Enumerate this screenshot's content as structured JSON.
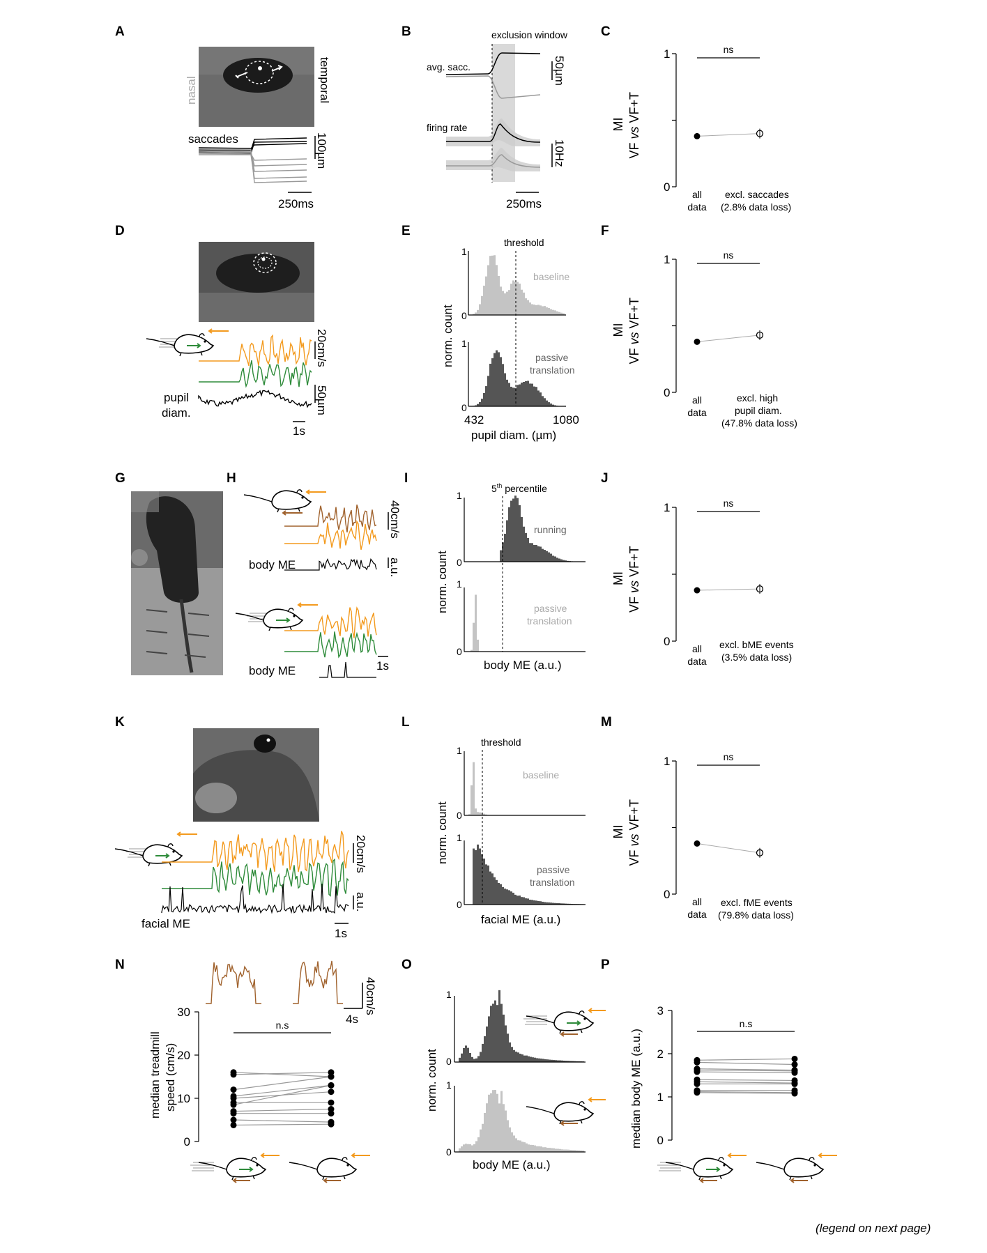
{
  "panels": [
    "A",
    "B",
    "C",
    "D",
    "E",
    "F",
    "G",
    "H",
    "I",
    "J",
    "K",
    "L",
    "M",
    "N",
    "O",
    "P"
  ],
  "panel_a": {
    "nasal": "nasal",
    "temporal": "temporal",
    "saccades": "saccades",
    "scale_y": "100µm",
    "scale_x": "250ms"
  },
  "panel_b": {
    "exclusion": "exclusion window",
    "avg_sacc": "avg. sacc.",
    "firing_rate": "firing rate",
    "scale_um": "50µm",
    "scale_hz": "10Hz",
    "scale_x": "250ms"
  },
  "mi_axis": {
    "ylabel": "MI",
    "ylabel2_a": "VF ",
    "ylabel2_b": "vs",
    "ylabel2_c": " VF+T",
    "tick1": "1",
    "tick0": "0",
    "ns": "ns",
    "all": "all",
    "data": "data"
  },
  "panel_c": {
    "excl_1": "excl. saccades",
    "excl_2": "(2.8% data loss)"
  },
  "panel_d": {
    "speed": "20cm/s",
    "pupil_1": "pupil",
    "pupil_2": "diam.",
    "um": "50µm",
    "s": "1s"
  },
  "panel_e": {
    "threshold": "threshold",
    "baseline": "baseline",
    "passive_1": "passive",
    "passive_2": "translation",
    "ylabel": "norm. count",
    "xlabel": "pupil diam. (µm)",
    "xmin": "432",
    "xmax": "1080",
    "one": "1",
    "zero": "0"
  },
  "panel_f": {
    "excl_1": "excl. high",
    "excl_2": "pupil diam.",
    "excl_3": "(47.8% data loss)"
  },
  "panel_h": {
    "speed": "40cm/s",
    "au": "a.u.",
    "body_me": "body ME",
    "s": "1s"
  },
  "panel_i": {
    "pct_pre": "5",
    "pct_sup": "th",
    "pct_post": " percentile",
    "running": "running",
    "passive_1": "passive",
    "passive_2": "translation",
    "ylabel": "norm. count",
    "xlabel": "body ME (a.u.)",
    "one": "1",
    "zero": "0"
  },
  "panel_j": {
    "excl_1": "excl. bME events",
    "excl_2": "(3.5% data loss)"
  },
  "panel_k": {
    "speed": "20cm/s",
    "au": "a.u.",
    "facial": "facial ME",
    "s": "1s"
  },
  "panel_l": {
    "threshold": "threshold",
    "baseline": "baseline",
    "passive_1": "passive",
    "passive_2": "translation",
    "ylabel": "norm. count",
    "xlabel": "facial ME (a.u.)",
    "one": "1",
    "zero": "0"
  },
  "panel_m": {
    "excl_1": "excl. fME events",
    "excl_2": "(79.8% data loss)"
  },
  "panel_n": {
    "ylabel_1": "median treadmill",
    "ylabel_2": "speed (cm/s)",
    "ns": "n.s",
    "speed": "40cm/s",
    "s": "4s",
    "ticks": [
      "0",
      "10",
      "20",
      "30"
    ]
  },
  "panel_o": {
    "ylabel": "norm. count",
    "xlabel": "body ME (a.u.)",
    "one": "1",
    "zero": "0"
  },
  "panel_p": {
    "ylabel": "median body ME (a.u.)",
    "ns": "n.s",
    "ticks": [
      "0",
      "1",
      "2",
      "3"
    ]
  },
  "legend_note": "(legend on next page)",
  "colors": {
    "orange": "#f39a1e",
    "green": "#2e8b3a",
    "brown": "#a0622d",
    "dark": "#555555",
    "light": "#c4c4c4"
  },
  "chart_data": [
    {
      "type": "scatter",
      "panel": "C",
      "categories": [
        "all data",
        "excl. saccades"
      ],
      "values": [
        0.38,
        0.4
      ],
      "ylim": [
        0,
        1
      ],
      "ylabel": "MI"
    },
    {
      "type": "scatter",
      "panel": "F",
      "categories": [
        "all data",
        "excl. high pupil diam."
      ],
      "values": [
        0.38,
        0.43
      ],
      "ylim": [
        0,
        1
      ],
      "ylabel": "MI"
    },
    {
      "type": "scatter",
      "panel": "J",
      "categories": [
        "all data",
        "excl. bME events"
      ],
      "values": [
        0.38,
        0.39
      ],
      "ylim": [
        0,
        1
      ],
      "ylabel": "MI"
    },
    {
      "type": "scatter",
      "panel": "M",
      "categories": [
        "all data",
        "excl. fME events"
      ],
      "values": [
        0.38,
        0.31
      ],
      "ylim": [
        0,
        1
      ],
      "ylabel": "MI"
    },
    {
      "type": "line",
      "panel": "N",
      "ylim": [
        0,
        30
      ],
      "ylabel": "median treadmill speed (cm/s)",
      "pairs": [
        [
          16,
          15
        ],
        [
          15.5,
          16
        ],
        [
          12,
          15
        ],
        [
          10.5,
          13
        ],
        [
          10,
          11.5
        ],
        [
          9,
          9
        ],
        [
          8.5,
          13
        ],
        [
          7,
          7.5
        ],
        [
          6.5,
          6.5
        ],
        [
          5,
          4.5
        ],
        [
          3.8,
          4
        ]
      ]
    },
    {
      "type": "line",
      "panel": "P",
      "ylim": [
        0,
        3
      ],
      "ylabel": "median body ME (a.u.)",
      "pairs": [
        [
          1.85,
          1.88
        ],
        [
          1.8,
          1.75
        ],
        [
          1.65,
          1.62
        ],
        [
          1.62,
          1.6
        ],
        [
          1.58,
          1.56
        ],
        [
          1.4,
          1.38
        ],
        [
          1.35,
          1.32
        ],
        [
          1.3,
          1.3
        ],
        [
          1.15,
          1.15
        ],
        [
          1.12,
          1.1
        ],
        [
          1.1,
          1.08
        ]
      ]
    }
  ]
}
